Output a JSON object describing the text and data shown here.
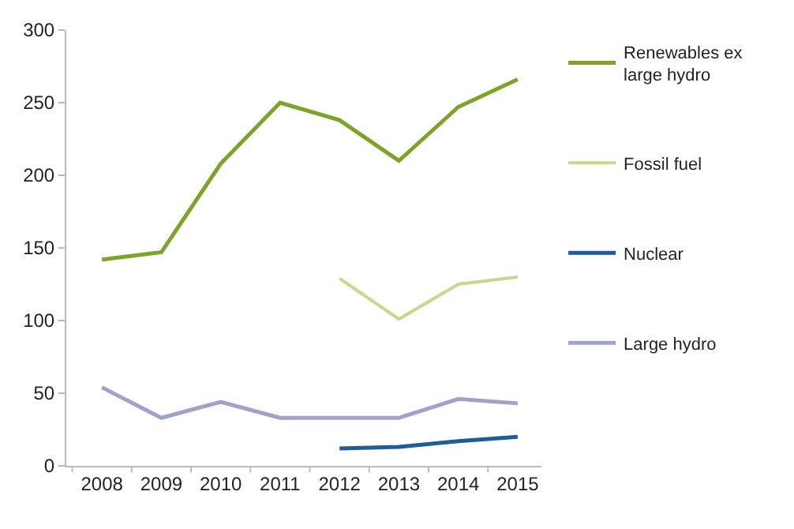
{
  "chart_data": {
    "type": "line",
    "categories": [
      "2008",
      "2009",
      "2010",
      "2011",
      "2012",
      "2013",
      "2014",
      "2015"
    ],
    "series": [
      {
        "name": "Renewables ex large hydro",
        "color": "#7ba428",
        "values": [
          142,
          147,
          208,
          250,
          238,
          210,
          247,
          266
        ]
      },
      {
        "name": "Fossil fuel",
        "color": "#c5d98a",
        "values": [
          null,
          null,
          null,
          null,
          129,
          101,
          125,
          130
        ]
      },
      {
        "name": "Nuclear",
        "color": "#1f5c99",
        "values": [
          null,
          null,
          null,
          null,
          12,
          13,
          17,
          20
        ]
      },
      {
        "name": "Large hydro",
        "color": "#a0a3c8",
        "values": [
          54,
          33,
          44,
          33,
          33,
          33,
          46,
          43
        ]
      }
    ],
    "ylim": [
      0,
      300
    ],
    "yticks": [
      0,
      50,
      100,
      150,
      200,
      250,
      300
    ],
    "legend": "right",
    "marker": "none",
    "line_style": "solid"
  }
}
